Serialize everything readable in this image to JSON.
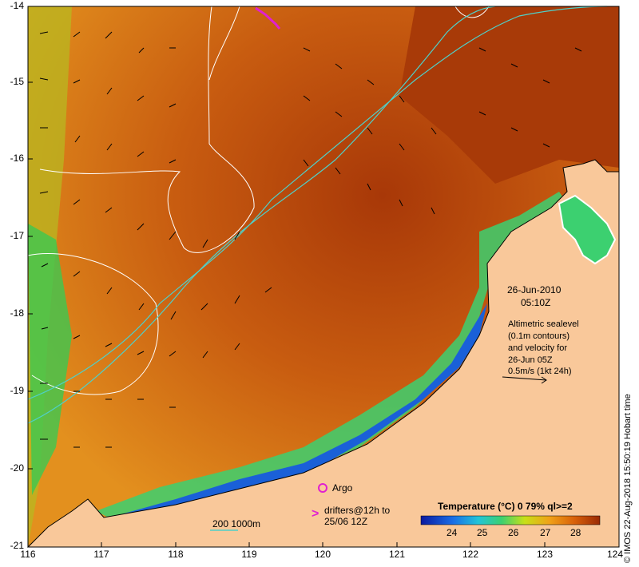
{
  "map": {
    "date_label": "26-Jun-2010",
    "time_label": "05:10Z",
    "altimetry_text": [
      "Altimetric sealevel",
      "(0.1m contours)",
      "and velocity for",
      "26-Jun 05Z",
      "0.5m/s (1kt 24h)"
    ],
    "argo_label": "Argo",
    "drifter_marker": ">",
    "drifters_text": [
      "drifters@12h to",
      "25/06 12Z"
    ],
    "bathymetry_label": "200  1000m",
    "colorbar_title": "Temperature (°C) 0 79% ql>=2",
    "colorbar_ticks": [
      "24",
      "25",
      "26",
      "27",
      "28"
    ],
    "credit": "© IMOS 22-Aug-2018 15:50:19 Hobart time",
    "lat_ticks": [
      "-14",
      "-15",
      "-16",
      "-17",
      "-18",
      "-19",
      "-20",
      "-21"
    ],
    "lon_ticks": [
      "116",
      "117",
      "118",
      "119",
      "120",
      "121",
      "122",
      "123",
      "124"
    ],
    "colors": {
      "land": "#f9c89a",
      "warm_sea": "#b84a08",
      "mid_sea": "#e08a1a",
      "cool_sea": "#2a9ad6",
      "contour_white": "#ffffff",
      "contour_cyan": "#4fd0c8",
      "argo_marker": "#e020d0"
    }
  }
}
